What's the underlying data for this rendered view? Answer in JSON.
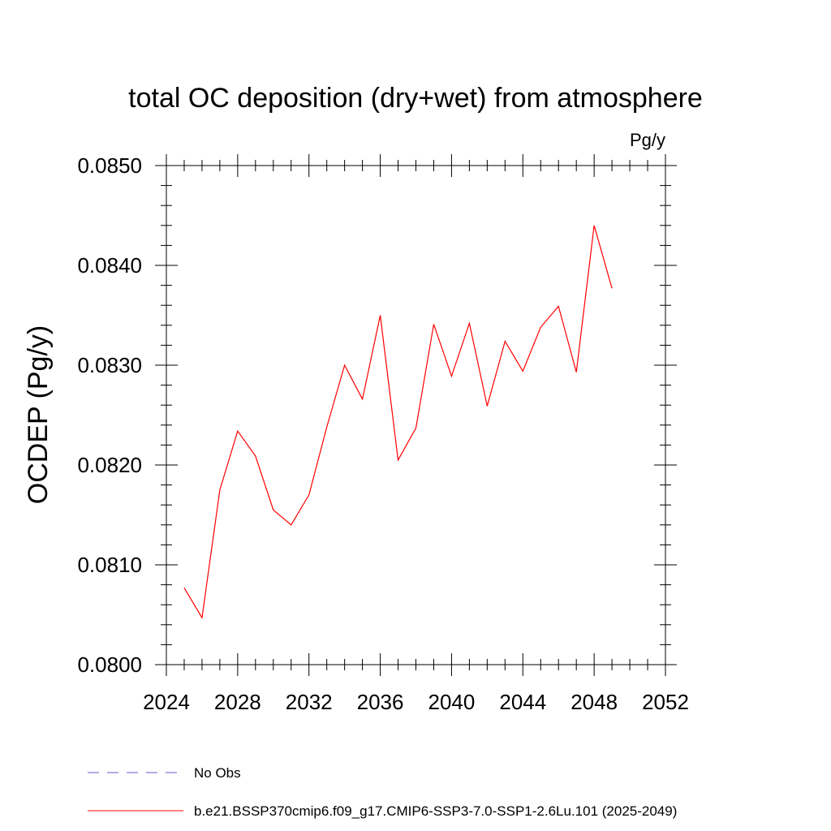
{
  "chart_data": {
    "type": "line",
    "title": "total OC deposition (dry+wet) from atmosphere",
    "units_label": "Pg/y",
    "ylabel": "OCDEP  (Pg/y)",
    "xlabel": "",
    "xlim": [
      2024,
      2052
    ],
    "ylim": [
      0.08,
      0.085
    ],
    "x_ticks": [
      "2024",
      "2028",
      "2032",
      "2036",
      "2040",
      "2044",
      "2048",
      "2052"
    ],
    "y_ticks": [
      "0.0800",
      "0.0810",
      "0.0820",
      "0.0830",
      "0.0840",
      "0.0850"
    ],
    "grid": false,
    "series": [
      {
        "name": "b.e21.BSSP370cmip6.f09_g17.CMIP6-SSP3-7.0-SSP1-2.6Lu.101 (2025-2049)",
        "color": "#ff0000",
        "x": [
          2025,
          2026,
          2027,
          2028,
          2029,
          2030,
          2031,
          2032,
          2033,
          2034,
          2035,
          2036,
          2037,
          2038,
          2039,
          2040,
          2041,
          2042,
          2043,
          2044,
          2045,
          2046,
          2047,
          2048,
          2049
        ],
        "y": [
          0.08077,
          0.08047,
          0.08175,
          0.08234,
          0.08209,
          0.08155,
          0.0814,
          0.0817,
          0.08238,
          0.083,
          0.08266,
          0.0835,
          0.08205,
          0.08237,
          0.08341,
          0.08289,
          0.08342,
          0.08259,
          0.08324,
          0.08294,
          0.08338,
          0.08359,
          0.08293,
          0.0844,
          0.08377
        ]
      }
    ],
    "legend": [
      {
        "label": "No Obs",
        "style": "dashed",
        "color": "#6a5acd"
      },
      {
        "label": "b.e21.BSSP370cmip6.f09_g17.CMIP6-SSP3-7.0-SSP1-2.6Lu.101 (2025-2049)",
        "style": "solid",
        "color": "#ff0000"
      }
    ]
  }
}
